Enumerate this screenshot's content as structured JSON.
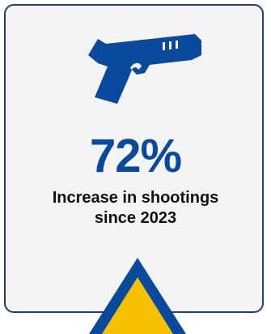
{
  "stat": {
    "value": "72%",
    "label_line1": "Increase in shootings",
    "label_line2": "since 2023"
  },
  "icons": {
    "main": "handgun-icon",
    "bottom": "warning-triangle-icon"
  },
  "colors": {
    "primary_blue": "#0a4a9c",
    "border_navy": "#1a3f7a",
    "accent_yellow": "#f6c200",
    "text_dark": "#111111",
    "card_bg": "#f4f4f4"
  }
}
